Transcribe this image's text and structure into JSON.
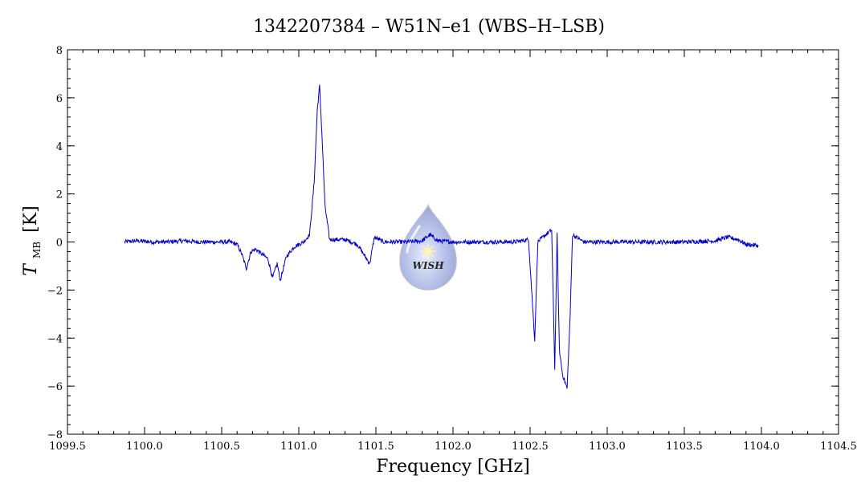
{
  "chart_data": {
    "type": "line",
    "title": "1342207384 – W51N–e1 (WBS–H–LSB)",
    "xlabel": "Frequency [GHz]",
    "ylabel_main": "T",
    "ylabel_sub": "MB",
    "ylabel_unit": "[K]",
    "xlim": [
      1099.5,
      1104.5
    ],
    "ylim": [
      -8,
      8
    ],
    "xticks": [
      1099.5,
      1100.0,
      1100.5,
      1101.0,
      1101.5,
      1102.0,
      1102.5,
      1103.0,
      1103.5,
      1104.0,
      1104.5
    ],
    "xtick_labels": [
      "1099.5",
      "1100.0",
      "1100.5",
      "1101.0",
      "1101.5",
      "1102.0",
      "1102.5",
      "1103.0",
      "1103.5",
      "1104.0",
      "1104.5"
    ],
    "yticks": [
      -8,
      -6,
      -4,
      -2,
      0,
      2,
      4,
      6,
      8
    ],
    "ytick_labels": [
      "−8",
      "−6",
      "−4",
      "−2",
      "0",
      "2",
      "4",
      "6",
      "8"
    ],
    "grid": false,
    "legend": "none",
    "series": [
      {
        "color": "#0000cc",
        "points": [
          [
            1099.87,
            0.0
          ],
          [
            1099.95,
            0.05
          ],
          [
            1100.05,
            0.0
          ],
          [
            1100.15,
            0.0
          ],
          [
            1100.25,
            0.05
          ],
          [
            1100.35,
            0.0
          ],
          [
            1100.45,
            0.0
          ],
          [
            1100.55,
            0.0
          ],
          [
            1100.6,
            -0.1
          ],
          [
            1100.63,
            -0.5
          ],
          [
            1100.66,
            -1.1
          ],
          [
            1100.69,
            -0.4
          ],
          [
            1100.72,
            -0.3
          ],
          [
            1100.76,
            -0.5
          ],
          [
            1100.8,
            -0.7
          ],
          [
            1100.83,
            -1.5
          ],
          [
            1100.86,
            -0.9
          ],
          [
            1100.88,
            -1.6
          ],
          [
            1100.92,
            -0.6
          ],
          [
            1100.97,
            -0.2
          ],
          [
            1101.03,
            0.0
          ],
          [
            1101.07,
            0.3
          ],
          [
            1101.1,
            2.5
          ],
          [
            1101.12,
            5.5
          ],
          [
            1101.135,
            6.5
          ],
          [
            1101.15,
            4.5
          ],
          [
            1101.17,
            1.5
          ],
          [
            1101.2,
            0.1
          ],
          [
            1101.3,
            0.1
          ],
          [
            1101.38,
            -0.1
          ],
          [
            1101.42,
            -0.5
          ],
          [
            1101.46,
            -0.9
          ],
          [
            1101.49,
            0.2
          ],
          [
            1101.55,
            0.0
          ],
          [
            1101.7,
            0.0
          ],
          [
            1101.8,
            0.05
          ],
          [
            1101.85,
            0.3
          ],
          [
            1101.9,
            0.05
          ],
          [
            1102.0,
            0.0
          ],
          [
            1102.2,
            0.0
          ],
          [
            1102.4,
            0.0
          ],
          [
            1102.49,
            0.1
          ],
          [
            1102.51,
            -2.0
          ],
          [
            1102.53,
            -4.1
          ],
          [
            1102.55,
            0.0
          ],
          [
            1102.6,
            0.3
          ],
          [
            1102.64,
            0.5
          ],
          [
            1102.66,
            -5.3
          ],
          [
            1102.675,
            0.3
          ],
          [
            1102.69,
            -4.5
          ],
          [
            1102.71,
            -5.5
          ],
          [
            1102.74,
            -6.1
          ],
          [
            1102.76,
            -3.0
          ],
          [
            1102.775,
            0.3
          ],
          [
            1102.85,
            0.0
          ],
          [
            1103.0,
            0.0
          ],
          [
            1103.2,
            0.0
          ],
          [
            1103.5,
            0.0
          ],
          [
            1103.7,
            0.05
          ],
          [
            1103.78,
            0.2
          ],
          [
            1103.85,
            0.1
          ],
          [
            1103.9,
            -0.1
          ],
          [
            1103.98,
            -0.15
          ]
        ]
      }
    ]
  },
  "watermark": {
    "text": "WISH",
    "color": "#9aa6d8"
  }
}
